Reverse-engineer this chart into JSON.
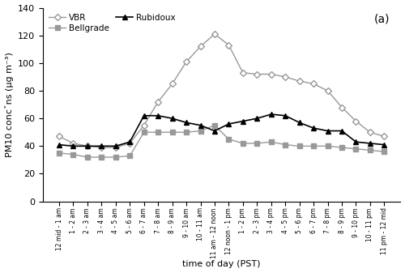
{
  "x_labels": [
    "12 mid - 1 am",
    "1 - 2 am",
    "2 - 3 am",
    "3 - 4 am",
    "4 - 5 am",
    "5 - 6 am",
    "6 - 7 am",
    "7 - 8 am",
    "8 - 9 am",
    "9 - 10 am",
    "10 - 11 am",
    "11 am - 12 noon",
    "12 noon - 1 pm",
    "1 - 2 pm",
    "2 - 3 pm",
    "3 - 4 pm",
    "4 - 5 pm",
    "5 - 6 pm",
    "6 - 7 pm",
    "7 - 8 pm",
    "8 - 9 pm",
    "9 - 10 pm",
    "10 - 11 pm",
    "11 pm - 12 mid"
  ],
  "VBR": [
    47,
    42,
    40,
    39,
    39,
    42,
    55,
    72,
    85,
    101,
    112,
    121,
    113,
    93,
    92,
    92,
    90,
    87,
    85,
    80,
    68,
    58,
    50,
    47
  ],
  "Bellgrade": [
    35,
    34,
    32,
    32,
    32,
    33,
    50,
    50,
    50,
    50,
    51,
    55,
    45,
    42,
    42,
    43,
    41,
    40,
    40,
    40,
    39,
    38,
    37,
    36
  ],
  "Rubidoux": [
    41,
    40,
    40,
    40,
    40,
    43,
    62,
    62,
    60,
    57,
    55,
    51,
    56,
    58,
    60,
    63,
    62,
    57,
    53,
    51,
    51,
    43,
    42,
    41
  ],
  "VBR_color": "#999999",
  "Bellgrade_color": "#999999",
  "Rubidoux_color": "#000000",
  "ylabel": "PM10 concˇns (μg m⁻³)",
  "xlabel": "time of day (PST)",
  "ylim": [
    0,
    140
  ],
  "yticks": [
    0,
    20,
    40,
    60,
    80,
    100,
    120,
    140
  ],
  "annotation": "(a)",
  "figsize": [
    5.0,
    3.37
  ],
  "dpi": 100
}
